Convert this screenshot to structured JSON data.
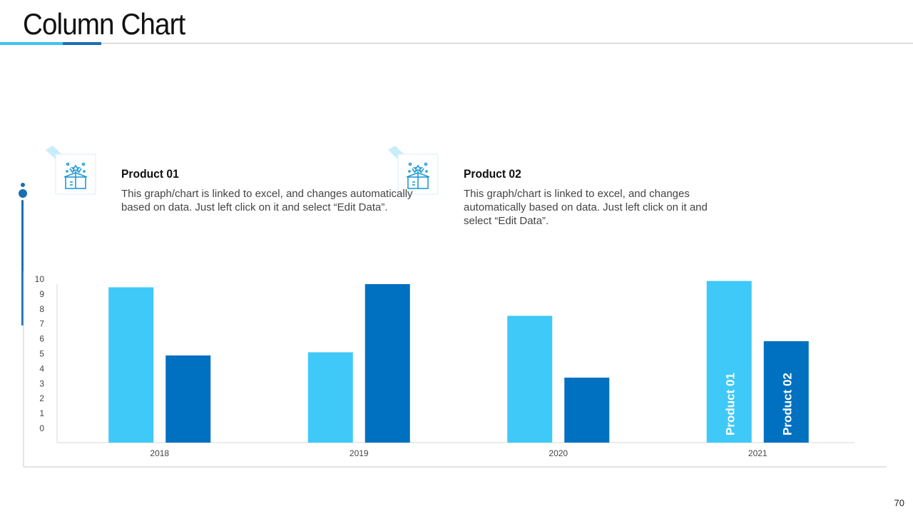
{
  "page": {
    "title": "Column Chart",
    "page_number": "70"
  },
  "products": [
    {
      "title": "Product 01",
      "description": "This graph/chart is linked to excel, and changes automatically based on data. Just left click on it and select “Edit Data”.",
      "icon": "gift-box-icon"
    },
    {
      "title": "Product 02",
      "description": "This graph/chart is linked to excel, and changes automatically based on data. Just left click on it and select “Edit Data”.",
      "icon": "gift-box-icon"
    }
  ],
  "colors": {
    "product_01": "#3fc9f8",
    "product_02": "#0070c0",
    "accent": "#1a6fb4"
  },
  "chart_data": {
    "type": "bar",
    "categories": [
      "2018",
      "2019",
      "2020",
      "2021"
    ],
    "series": [
      {
        "name": "Product 01",
        "values": [
          9.8,
          5.7,
          8.0,
          10.2
        ]
      },
      {
        "name": "Product 02",
        "values": [
          5.5,
          10.0,
          4.1,
          6.4
        ]
      }
    ],
    "ylim": [
      0,
      10
    ],
    "yticks": [
      "0",
      "1",
      "2",
      "3",
      "4",
      "5",
      "6",
      "7",
      "8",
      "9",
      "10"
    ],
    "grid": false,
    "legend": "none",
    "inline_series_labels": "last-category-bars"
  }
}
